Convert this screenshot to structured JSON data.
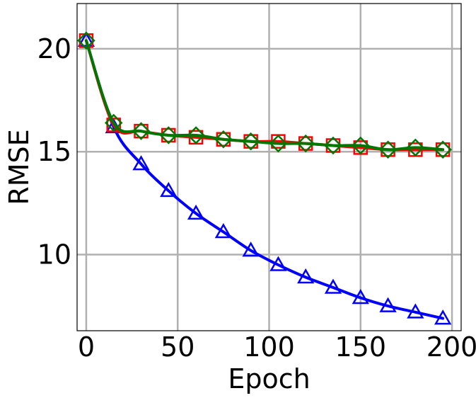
{
  "chart_data": {
    "type": "line",
    "title": "",
    "xlabel": "Epoch",
    "ylabel": "RMSE",
    "xlim": [
      -5,
      205
    ],
    "ylim": [
      6.3,
      22.2
    ],
    "grid": true,
    "x_ticks": [
      0,
      50,
      100,
      150,
      200
    ],
    "x_tick_labels": [
      "0",
      "50",
      "100",
      "150",
      "200"
    ],
    "y_ticks": [
      10,
      15,
      20
    ],
    "y_tick_labels": [
      "10",
      "15",
      "20"
    ],
    "series": [
      {
        "color": "#0000ff",
        "marker": "triangle",
        "x": [
          0,
          15,
          30,
          45,
          60,
          75,
          90,
          105,
          120,
          135,
          150,
          165,
          180,
          195
        ],
        "values": [
          20.4,
          16.2,
          14.4,
          13.1,
          12.0,
          11.1,
          10.2,
          9.5,
          8.9,
          8.4,
          7.9,
          7.5,
          7.2,
          6.9
        ]
      },
      {
        "color": "#ff0000",
        "marker": "square",
        "x": [
          0,
          15,
          30,
          45,
          60,
          75,
          90,
          105,
          120,
          135,
          150,
          165,
          180,
          195
        ],
        "values": [
          20.4,
          16.3,
          16.0,
          15.8,
          15.7,
          15.6,
          15.5,
          15.5,
          15.4,
          15.3,
          15.2,
          15.1,
          15.1,
          15.1
        ]
      },
      {
        "color": "#007700",
        "marker": "diamond",
        "x": [
          0,
          15,
          30,
          45,
          60,
          75,
          90,
          105,
          120,
          135,
          150,
          165,
          180,
          195
        ],
        "values": [
          20.4,
          16.4,
          16.0,
          15.8,
          15.8,
          15.6,
          15.5,
          15.4,
          15.4,
          15.3,
          15.3,
          15.1,
          15.2,
          15.1
        ]
      }
    ]
  }
}
